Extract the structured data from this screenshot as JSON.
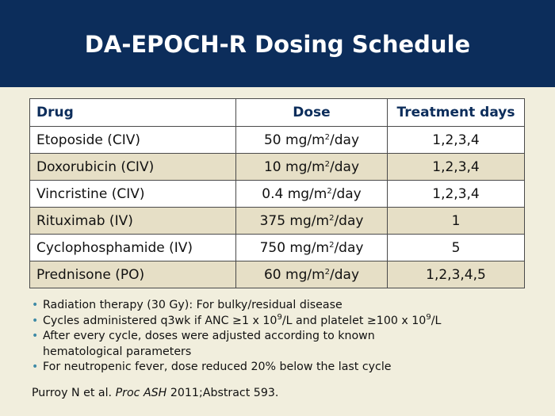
{
  "title": "DA-EPOCH-R Dosing Schedule",
  "table": {
    "headers": [
      "Drug",
      "Dose",
      "Treatment days"
    ],
    "rows": [
      {
        "drug": "Etoposide (CIV)",
        "dose_num": "50 mg/m",
        "dose_sup": "2",
        "dose_unit": "/day",
        "days": "1,2,3,4"
      },
      {
        "drug": "Doxorubicin (CIV)",
        "dose_num": "10 mg/m",
        "dose_sup": "2",
        "dose_unit": "/day",
        "days": "1,2,3,4"
      },
      {
        "drug": "Vincristine (CIV)",
        "dose_num": "0.4 mg/m",
        "dose_sup": "2",
        "dose_unit": "/day",
        "days": "1,2,3,4"
      },
      {
        "drug": "Rituximab (IV)",
        "dose_num": "375 mg/m",
        "dose_sup": "2",
        "dose_unit": "/day",
        "days": "1"
      },
      {
        "drug": "Cyclophosphamide (IV)",
        "dose_num": "750 mg/m",
        "dose_sup": "2",
        "dose_unit": "/day",
        "days": "5"
      },
      {
        "drug": "Prednisone (PO)",
        "dose_num": "60 mg/m",
        "dose_sup": "2",
        "dose_unit": "/day",
        "days": "1,2,3,4,5"
      }
    ]
  },
  "bullets": {
    "b1": "Radiation therapy (30 Gy): For bulky/residual disease",
    "b2": {
      "p1": "Cycles administered q3wk if ANC ≥1 x 10",
      "s1": "9",
      "p2": "/L and platelet ≥100 x 10",
      "s2": "9",
      "p3": "/L"
    },
    "b3_line1": "After every cycle, doses were adjusted according to known",
    "b3_line2": "hematological parameters",
    "b4": "For neutropenic fever, dose reduced 20% below the last cycle"
  },
  "citation": {
    "authors": "Purroy N et al. ",
    "journal": "Proc ASH",
    "rest": " 2011;Abstract 593."
  },
  "colors": {
    "header_bg": "#0c2d5b",
    "page_bg": "#f1eedd",
    "row_alt": "#e6dfc6",
    "bullet": "#3f8aa6"
  }
}
